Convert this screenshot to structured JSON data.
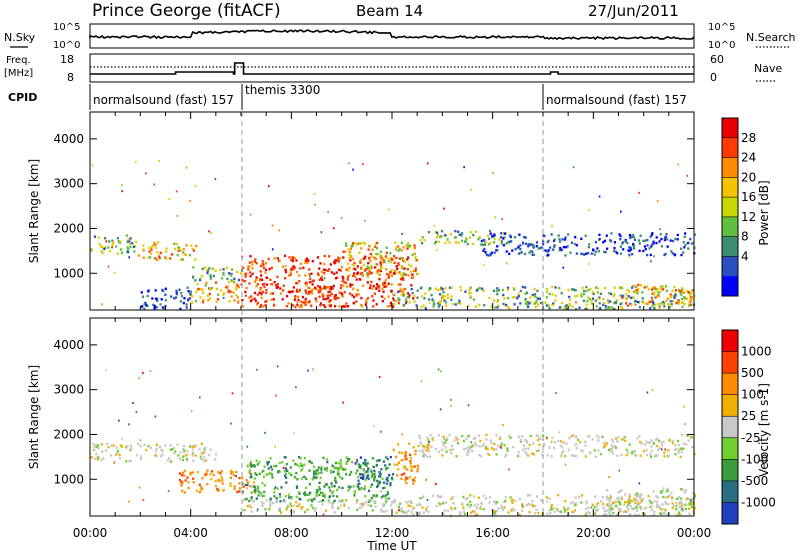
{
  "header": {
    "station": "Prince George (fitACF)",
    "beam": "Beam 14",
    "date": "27/Jun/2011"
  },
  "noise_panel": {
    "left_label": "N.Sky",
    "left_ticks": [
      "10^5",
      "10^0"
    ],
    "right_ticks": [
      "10^5",
      "10^0"
    ],
    "right_label": "N.Search"
  },
  "freq_panel": {
    "left_label_1": "Freq.",
    "left_label_2": "[MHz]",
    "left_ticks": [
      "18",
      "8"
    ],
    "right_ticks": [
      "60",
      "0"
    ],
    "right_label": "Nave"
  },
  "cpid_panel": {
    "label": "CPID",
    "segments": [
      {
        "name": "normalsound (fast) 157",
        "start_hour": 0,
        "end_hour": 6
      },
      {
        "name": "themis 3300",
        "start_hour": 6,
        "end_hour": 18
      },
      {
        "name": "normalsound (fast) 157",
        "start_hour": 18,
        "end_hour": 24
      }
    ]
  },
  "x_axis": {
    "label": "Time UT",
    "ticks": [
      "00:00",
      "04:00",
      "08:00",
      "12:00",
      "16:00",
      "20:00",
      "00:00"
    ]
  },
  "chart_data": [
    {
      "type": "heatmap",
      "panel": "power",
      "ylabel": "Slant Range [km]",
      "yticks": [
        1000,
        2000,
        3000,
        4000
      ],
      "ylim": [
        180,
        4600
      ],
      "xlim_hours": [
        0,
        24
      ],
      "colorbar_label": "Power [dB]",
      "colorbar_ticks": [
        "28",
        "24",
        "20",
        "16",
        "12",
        "8",
        "4"
      ],
      "colorbar_colors": [
        "#0000ff",
        "#2a4fbf",
        "#3b8f6f",
        "#5fbf3f",
        "#c8d800",
        "#f5c400",
        "#ff8c00",
        "#ff3a00",
        "#e60000"
      ],
      "regions": [
        {
          "t0": 0.0,
          "t1": 1.8,
          "r0": 1400,
          "r1": 1850,
          "level": "mid"
        },
        {
          "t0": 1.8,
          "t1": 4.2,
          "r0": 1300,
          "r1": 1700,
          "level": "high"
        },
        {
          "t0": 2.0,
          "t1": 4.0,
          "r0": 200,
          "r1": 700,
          "level": "low"
        },
        {
          "t0": 4.0,
          "t1": 6.0,
          "r0": 800,
          "r1": 1150,
          "level": "mid"
        },
        {
          "t0": 4.0,
          "t1": 6.0,
          "r0": 350,
          "r1": 800,
          "level": "high"
        },
        {
          "t0": 6.0,
          "t1": 12.8,
          "r0": 250,
          "r1": 1400,
          "level": "veryhigh"
        },
        {
          "t0": 8.0,
          "t1": 10.0,
          "r0": 250,
          "r1": 700,
          "level": "veryhigh"
        },
        {
          "t0": 10.0,
          "t1": 13.0,
          "r0": 900,
          "r1": 1700,
          "level": "high"
        },
        {
          "t0": 12.0,
          "t1": 24.0,
          "r0": 200,
          "r1": 700,
          "level": "mid"
        },
        {
          "t0": 13.0,
          "t1": 16.5,
          "r0": 1650,
          "r1": 1950,
          "level": "mid"
        },
        {
          "t0": 15.5,
          "t1": 24.0,
          "r0": 1400,
          "r1": 1900,
          "level": "low"
        },
        {
          "t0": 21.0,
          "t1": 24.0,
          "r0": 300,
          "r1": 750,
          "level": "high"
        }
      ]
    },
    {
      "type": "heatmap",
      "panel": "velocity",
      "ylabel": "Slant Range [km]",
      "yticks": [
        1000,
        2000,
        3000,
        4000
      ],
      "ylim": [
        180,
        4600
      ],
      "xlim_hours": [
        0,
        24
      ],
      "colorbar_label": "Velocity [m s-1]",
      "colorbar_ticks": [
        "1000",
        "500",
        "100",
        "25",
        "-25",
        "-100",
        "-500",
        "-1000"
      ],
      "colorbar_colors": [
        "#2040c0",
        "#2a6f7f",
        "#3a9f3a",
        "#70d030",
        "#c8c8c8",
        "#f0b000",
        "#ff8c00",
        "#ff4000",
        "#ee0000"
      ],
      "regions": [
        {
          "t0": 0.0,
          "t1": 5.0,
          "r0": 1400,
          "r1": 1800,
          "level": "ground"
        },
        {
          "t0": 3.5,
          "t1": 6.5,
          "r0": 700,
          "r1": 1200,
          "level": "away"
        },
        {
          "t0": 6.0,
          "t1": 11.8,
          "r0": 500,
          "r1": 1500,
          "level": "toward"
        },
        {
          "t0": 10.5,
          "t1": 12.0,
          "r0": 800,
          "r1": 1500,
          "level": "strongtoward"
        },
        {
          "t0": 12.0,
          "t1": 13.0,
          "r0": 900,
          "r1": 1800,
          "level": "away"
        },
        {
          "t0": 6.0,
          "t1": 13.0,
          "r0": 250,
          "r1": 550,
          "level": "ground"
        },
        {
          "t0": 12.5,
          "t1": 24.0,
          "r0": 200,
          "r1": 650,
          "level": "ground"
        },
        {
          "t0": 13.0,
          "t1": 24.0,
          "r0": 1500,
          "r1": 2000,
          "level": "ground"
        },
        {
          "t0": 20.5,
          "t1": 24.0,
          "r0": 200,
          "r1": 800,
          "level": "ground"
        }
      ]
    }
  ]
}
